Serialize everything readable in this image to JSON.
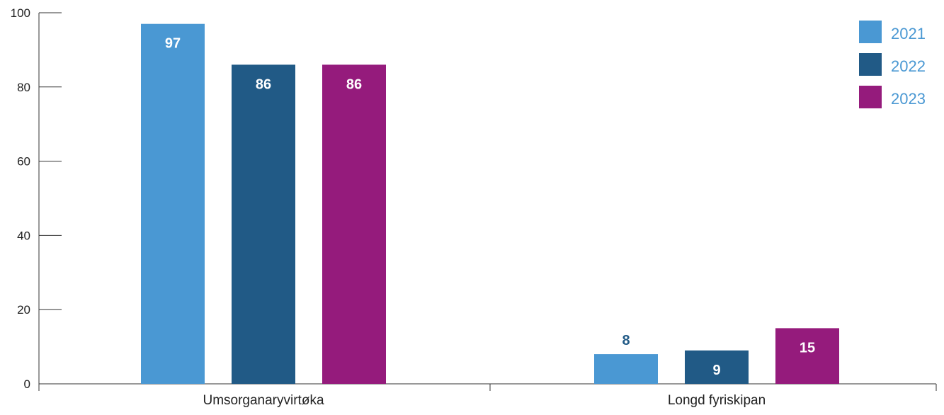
{
  "chart_data": {
    "type": "bar",
    "categories": [
      "Umsorganaryvirtøka",
      "Longd fyriskipan"
    ],
    "series": [
      {
        "name": "2021",
        "values": [
          97,
          8
        ],
        "color": "#4A98D3"
      },
      {
        "name": "2022",
        "values": [
          86,
          9
        ],
        "color": "#215A86"
      },
      {
        "name": "2023",
        "values": [
          86,
          15
        ],
        "color": "#951B7C"
      }
    ],
    "ylim": [
      0,
      100
    ],
    "yticks": [
      0,
      20,
      40,
      60,
      80,
      100
    ],
    "grid": false,
    "legend_position": "top-right",
    "colors": {
      "axis": "#333333",
      "label_inside": "#FFFFFF",
      "label_outside": "#215A86",
      "legend_text": "#4A98D3"
    }
  }
}
